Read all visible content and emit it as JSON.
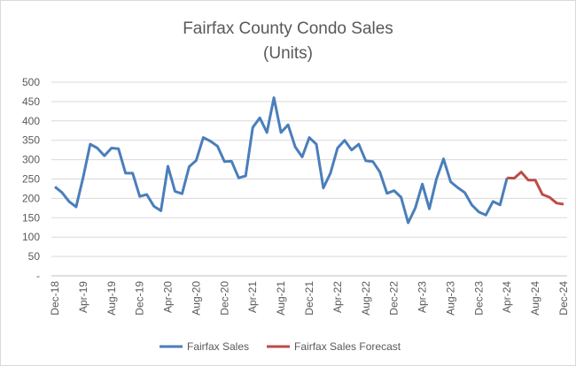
{
  "chart_data": {
    "type": "line",
    "title": "Fairfax County Condo Sales",
    "subtitle": "(Units)",
    "categories": [
      "Dec-18",
      null,
      null,
      null,
      "Apr-19",
      null,
      null,
      null,
      "Aug-19",
      null,
      null,
      null,
      "Dec-19",
      null,
      null,
      null,
      "Apr-20",
      null,
      null,
      null,
      "Aug-20",
      null,
      null,
      null,
      "Dec-20",
      null,
      null,
      null,
      "Apr-21",
      null,
      null,
      null,
      "Aug-21",
      null,
      null,
      null,
      "Dec-21",
      null,
      null,
      null,
      "Apr-22",
      null,
      null,
      null,
      "Aug-22",
      null,
      null,
      null,
      "Dec-22",
      null,
      null,
      null,
      "Apr-23",
      null,
      null,
      null,
      "Aug-23",
      null,
      null,
      null,
      "Dec-23",
      null,
      null,
      null,
      "Apr-24",
      null,
      null,
      null,
      "Aug-24",
      null,
      null,
      null,
      "Dec-24"
    ],
    "series": [
      {
        "name": "Fairfax Sales",
        "color": "#4a7ebb",
        "values": [
          230,
          215,
          192,
          178,
          255,
          340,
          330,
          310,
          330,
          328,
          265,
          265,
          205,
          210,
          180,
          168,
          283,
          218,
          212,
          282,
          298,
          357,
          348,
          335,
          295,
          296,
          253,
          258,
          383,
          408,
          370,
          460,
          370,
          390,
          333,
          307,
          357,
          340,
          227,
          265,
          330,
          350,
          325,
          340,
          297,
          295,
          268,
          213,
          220,
          203,
          137,
          175,
          237,
          173,
          250,
          302,
          243,
          228,
          215,
          183,
          165,
          157,
          192,
          183,
          253,
          null,
          null,
          null,
          null,
          null,
          null,
          null,
          null
        ]
      },
      {
        "name": "Fairfax Sales Forecast",
        "color": "#be4b48",
        "values": [
          null,
          null,
          null,
          null,
          null,
          null,
          null,
          null,
          null,
          null,
          null,
          null,
          null,
          null,
          null,
          null,
          null,
          null,
          null,
          null,
          null,
          null,
          null,
          null,
          null,
          null,
          null,
          null,
          null,
          null,
          null,
          null,
          null,
          null,
          null,
          null,
          null,
          null,
          null,
          null,
          null,
          null,
          null,
          null,
          null,
          null,
          null,
          null,
          null,
          null,
          null,
          null,
          null,
          null,
          null,
          null,
          null,
          null,
          null,
          null,
          null,
          null,
          null,
          null,
          253,
          252,
          268,
          247,
          247,
          210,
          203,
          188,
          185
        ]
      }
    ],
    "ylim": [
      0,
      500
    ],
    "yticks": [
      {
        "value": 0,
        "label": "-"
      },
      50,
      100,
      150,
      200,
      250,
      300,
      350,
      400,
      450,
      500
    ],
    "grid": true,
    "legend": "bottom"
  }
}
